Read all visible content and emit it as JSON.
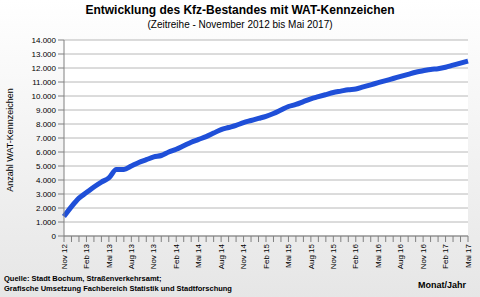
{
  "chart_data": {
    "type": "line",
    "title": "Entwicklung des Kfz-Bestandes mit WAT-Kennzeichen",
    "subtitle": "(Zeitreihe - November 2012 bis Mai 2017)",
    "y_label": "Anzahl WAT-Kennzeichen",
    "x_label": "Monat/Jahr",
    "source": [
      "Quelle: Stadt Bochum, Straßenverkehrsamt;",
      "Grafische Umsetzung Fachbereich Statistik und Stadtforschung"
    ],
    "categories": [
      "Nov 12",
      null,
      null,
      "Feb 13",
      null,
      null,
      "Mai 13",
      null,
      null,
      "Aug 13",
      null,
      null,
      "Nov 13",
      null,
      null,
      "Feb 14",
      null,
      null,
      "Mai 14",
      null,
      null,
      "Aug 14",
      null,
      null,
      "Nov 14",
      null,
      null,
      "Feb 15",
      null,
      null,
      "Mai 15",
      null,
      null,
      "Aug 15",
      null,
      null,
      "Nov 15",
      null,
      null,
      "Feb 16",
      null,
      null,
      "Mai 16",
      null,
      null,
      "Aug 16",
      null,
      null,
      "Nov 16",
      null,
      null,
      "Feb 17",
      null,
      null,
      "Mai 17"
    ],
    "values": [
      1400,
      2100,
      2700,
      3100,
      3500,
      3850,
      4150,
      4750,
      4750,
      5000,
      5250,
      5450,
      5650,
      5750,
      6000,
      6200,
      6450,
      6700,
      6900,
      7100,
      7350,
      7600,
      7750,
      7900,
      8100,
      8250,
      8400,
      8550,
      8750,
      9000,
      9250,
      9400,
      9600,
      9800,
      9950,
      10100,
      10250,
      10350,
      10450,
      10500,
      10650,
      10800,
      10950,
      11100,
      11250,
      11400,
      11550,
      11700,
      11800,
      11900,
      11950,
      12050,
      12200,
      12350,
      12500
    ],
    "color": "#1f4fd8",
    "ylim": [
      0,
      14000
    ],
    "yticks": [
      0,
      {
        "value": 1000,
        "label": "1.000"
      },
      {
        "value": 2000,
        "label": "2.000"
      },
      {
        "value": 3000,
        "label": "3.000"
      },
      {
        "value": 4000,
        "label": "4.000"
      },
      {
        "value": 5000,
        "label": "5.000"
      },
      {
        "value": 6000,
        "label": "6.000"
      },
      {
        "value": 7000,
        "label": "7.000"
      },
      {
        "value": 8000,
        "label": "8.000"
      },
      {
        "value": 9000,
        "label": "9.000"
      },
      {
        "value": 10000,
        "label": "10.000"
      },
      {
        "value": 11000,
        "label": "11.000"
      },
      {
        "value": 12000,
        "label": "12.000"
      },
      {
        "value": 13000,
        "label": "13.000"
      },
      {
        "value": 14000,
        "label": "14.000"
      }
    ],
    "grid": true
  }
}
